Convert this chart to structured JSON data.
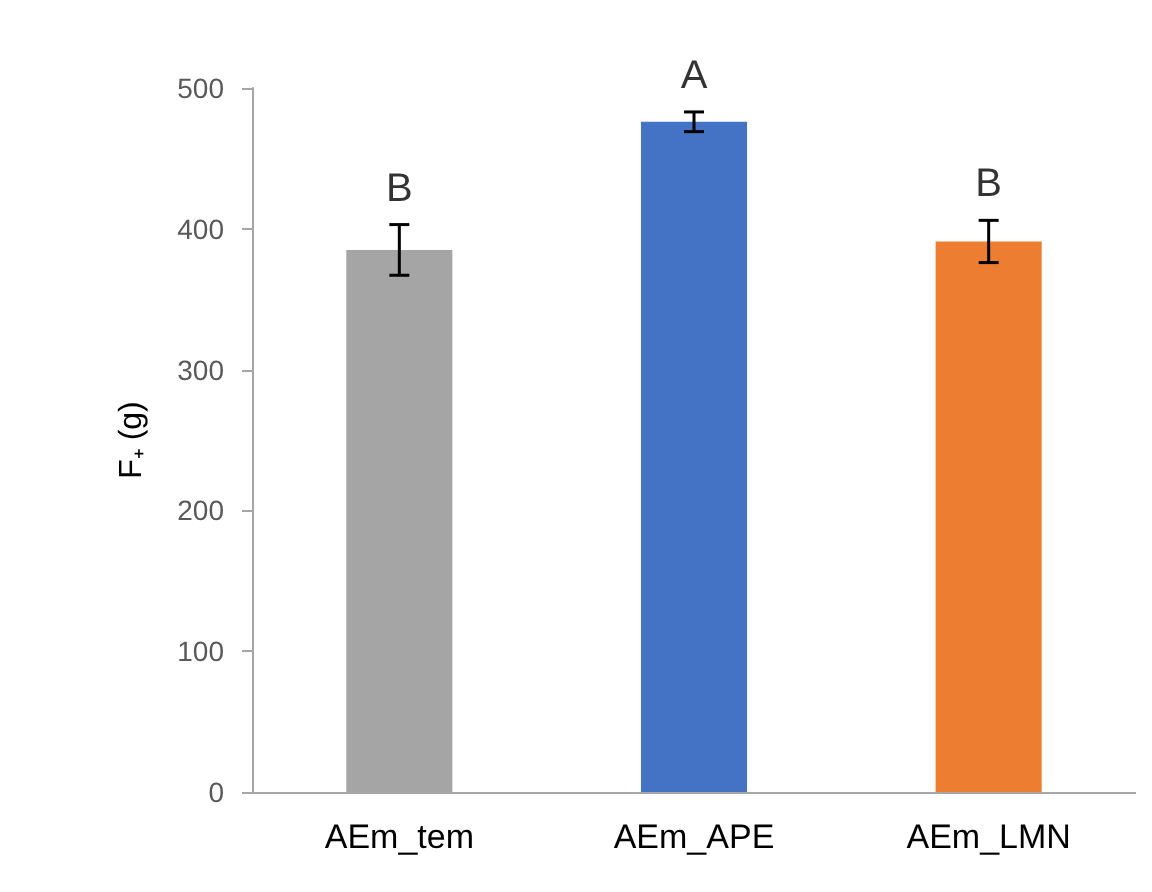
{
  "chart_data": {
    "type": "bar",
    "ylabel": "F₊ (g)",
    "categories": [
      "AEm_tem",
      "AEm_APE",
      "AEm_LMN"
    ],
    "values": [
      385,
      476,
      391
    ],
    "colors": [
      "#a5a5a5",
      "#4472c4",
      "#ed7d31"
    ],
    "errors": [
      18,
      7,
      15
    ],
    "ylim": [
      0,
      500
    ],
    "yticks": [
      0,
      100,
      200,
      300,
      400,
      500
    ],
    "grid": false,
    "annotations": [
      {
        "text": "B",
        "x": "AEm_tem",
        "y": 403
      },
      {
        "text": "A",
        "x": "AEm_APE",
        "y": 483
      },
      {
        "text": "B",
        "x": "AEm_LMN",
        "y": 406
      }
    ]
  }
}
